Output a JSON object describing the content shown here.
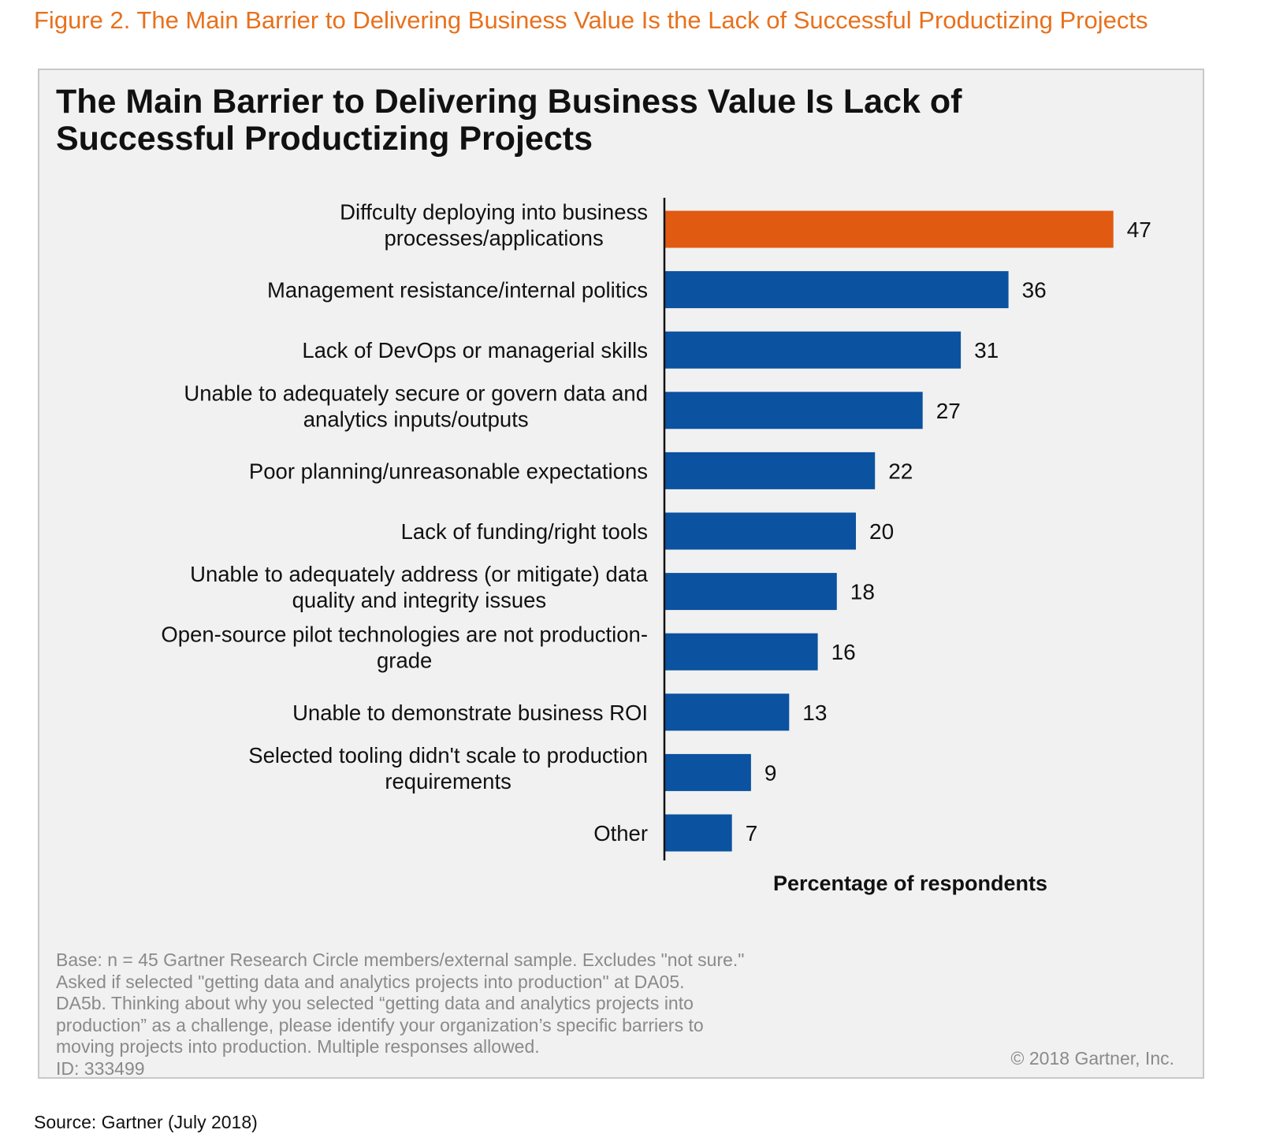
{
  "figure_caption": "Figure 2. The Main Barrier to Delivering Business Value Is the Lack of Successful Productizing Projects",
  "colors": {
    "highlight_bar": "#e05a12",
    "bar": "#0b52a0",
    "caption": "#e8711c"
  },
  "chart_data": {
    "type": "bar",
    "orientation": "horizontal",
    "title": [
      "The Main Barrier to Delivering Business Value Is Lack of",
      "Successful Productizing Projects"
    ],
    "xlabel": "Percentage of respondents",
    "xlim": [
      0,
      50
    ],
    "grid": false,
    "highlight_index": 0,
    "categories": [
      [
        "Diffculty deploying into business",
        "processes/applications"
      ],
      [
        "Management resistance/internal politics"
      ],
      [
        "Lack of DevOps or managerial skills"
      ],
      [
        "Unable to adequately secure or govern data and",
        "analytics inputs/outputs"
      ],
      [
        "Poor planning/unreasonable expectations"
      ],
      [
        "Lack of funding/right tools"
      ],
      [
        "Unable to adequately address (or mitigate) data",
        "quality and integrity issues"
      ],
      [
        "Open-source pilot technologies are not production-",
        "grade"
      ],
      [
        "Unable to demonstrate business ROI"
      ],
      [
        "Selected tooling didn't scale to production",
        "requirements"
      ],
      [
        "Other"
      ]
    ],
    "values": [
      47,
      36,
      31,
      27,
      22,
      20,
      18,
      16,
      13,
      9,
      7
    ]
  },
  "footnote": [
    "Base: n = 45 Gartner Research Circle members/external sample. Excludes \"not sure.\"",
    "Asked if selected \"getting data and analytics projects into production\" at DA05.",
    "DA5b. Thinking about why you selected “getting data and analytics projects into",
    "production” as a challenge, please identify your organization’s specific barriers to",
    "moving projects into production. Multiple responses allowed.",
    "ID: 333499"
  ],
  "copyright": "© 2018 Gartner, Inc.",
  "source": "Source: Gartner (July 2018)"
}
